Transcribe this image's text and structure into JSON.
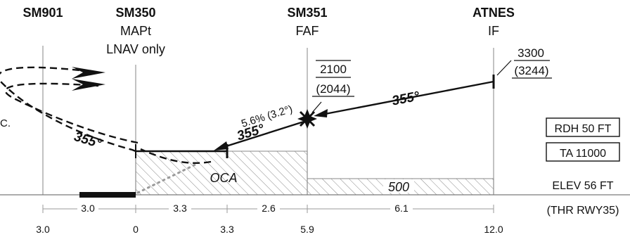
{
  "fixes": [
    {
      "id": "SM901",
      "line2": "",
      "line3": ""
    },
    {
      "id": "SM350",
      "line2": "MAPt",
      "line3": "LNAV only"
    },
    {
      "id": "SM351",
      "line2": "FAF",
      "line3": ""
    },
    {
      "id": "ATNES",
      "line2": "IF",
      "line3": ""
    }
  ],
  "altitudes": {
    "atnes_alt": "3300",
    "atnes_height": "(3244)",
    "faf_alt": "2100",
    "faf_height": "(2044)"
  },
  "course_labels": {
    "intermediate": "355°",
    "final": "355°",
    "missed": "355°"
  },
  "glidepath": "5.6% (3.2°)",
  "oca_label": "OCA",
  "min_alt_label": "500",
  "truncated_label": "C.",
  "info_boxes": {
    "rdh": "RDH 50 FT",
    "ta": "TA 11000"
  },
  "elevation": "ELEV 56 FT",
  "threshold": "(THR RWY35)",
  "segment_distances": [
    "3.0",
    "3.3",
    "2.6",
    "6.1"
  ],
  "cumulative_distances": [
    "3.0",
    "0",
    "3.3",
    "5.9",
    "12.0"
  ]
}
